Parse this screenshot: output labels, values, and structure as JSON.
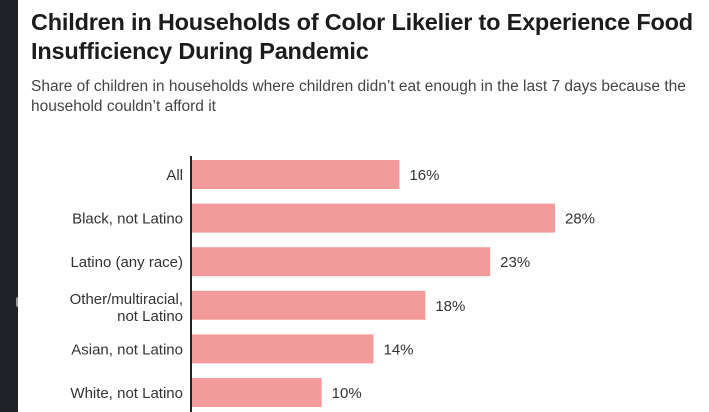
{
  "chart_data": {
    "type": "bar",
    "orientation": "horizontal",
    "title": "Children in Households of Color Likelier to Experience Food Insufficiency During Pandemic",
    "subtitle": "Share of children in households where children didn’t eat enough in the last 7 days because the household couldn’t afford it",
    "categories": [
      [
        "All"
      ],
      [
        "Black, not Latino"
      ],
      [
        "Latino (any race)"
      ],
      [
        "Other/multiracial,",
        "not Latino"
      ],
      [
        "Asian, not Latino"
      ],
      [
        "White, not Latino"
      ]
    ],
    "values": [
      16,
      28,
      23,
      18,
      14,
      10
    ],
    "value_labels": [
      "16%",
      "28%",
      "23%",
      "18%",
      "14%",
      "10%"
    ],
    "xlim": [
      0,
      28
    ],
    "bar_color": "#f39a9a",
    "axis_color": "#222222",
    "grid": false,
    "legend": "none"
  }
}
